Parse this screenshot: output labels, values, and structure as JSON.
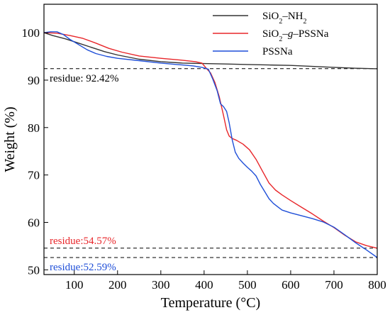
{
  "chart_data": {
    "type": "line",
    "xlabel": "Temperature (°C)",
    "ylabel": "Weight (%)",
    "xlim": [
      30,
      800
    ],
    "ylim": [
      49,
      106
    ],
    "xticks": [
      100,
      200,
      300,
      400,
      500,
      600,
      700,
      800
    ],
    "yticks": [
      50,
      60,
      70,
      80,
      90,
      100
    ],
    "grid": false,
    "legend_position": "top-right",
    "legend_entries": [
      {
        "series": 0,
        "parts": [
          {
            "t": "SiO",
            "s": "normal"
          },
          {
            "t": "2",
            "s": "sub"
          },
          {
            "t": "–NH",
            "s": "normal"
          },
          {
            "t": "2",
            "s": "sub"
          }
        ]
      },
      {
        "series": 1,
        "parts": [
          {
            "t": "SiO",
            "s": "normal"
          },
          {
            "t": "2",
            "s": "sub"
          },
          {
            "t": "–",
            "s": "normal"
          },
          {
            "t": "g",
            "s": "italic"
          },
          {
            "t": "–PSSNa",
            "s": "normal"
          }
        ]
      },
      {
        "series": 2,
        "parts": [
          {
            "t": "PSSNa",
            "s": "normal"
          }
        ]
      }
    ],
    "series": [
      {
        "name": "SiO2–NH2",
        "color": "#333333",
        "x": [
          30,
          50,
          80,
          110,
          140,
          170,
          200,
          250,
          300,
          350,
          400,
          450,
          500,
          550,
          600,
          650,
          700,
          750,
          800
        ],
        "y": [
          100.0,
          99.4,
          98.7,
          97.8,
          96.9,
          96.0,
          95.3,
          94.4,
          93.9,
          93.6,
          93.5,
          93.4,
          93.3,
          93.2,
          93.1,
          92.9,
          92.7,
          92.5,
          92.4
        ]
      },
      {
        "name": "SiO2–g–PSSNa",
        "color": "#e8262a",
        "x": [
          30,
          60,
          90,
          120,
          150,
          180,
          210,
          250,
          300,
          350,
          380,
          395,
          405,
          415,
          425,
          435,
          445,
          452,
          458,
          465,
          475,
          490,
          505,
          520,
          535,
          550,
          565,
          580,
          600,
          625,
          650,
          675,
          700,
          725,
          750,
          775,
          800
        ],
        "y": [
          100.0,
          99.9,
          99.4,
          98.8,
          97.8,
          96.7,
          95.9,
          95.1,
          94.6,
          94.2,
          93.9,
          93.6,
          92.5,
          91.5,
          89.5,
          86.5,
          82.5,
          79.5,
          78.2,
          77.7,
          77.3,
          76.5,
          75.3,
          73.3,
          70.8,
          68.3,
          66.8,
          65.8,
          64.6,
          63.2,
          61.8,
          60.3,
          58.9,
          57.3,
          55.9,
          55.1,
          54.57
        ]
      },
      {
        "name": "PSSNa",
        "color": "#1f4fd8",
        "x": [
          30,
          45,
          60,
          75,
          90,
          110,
          130,
          150,
          175,
          200,
          250,
          300,
          350,
          375,
          395,
          410,
          420,
          430,
          438,
          445,
          452,
          458,
          465,
          472,
          480,
          490,
          500,
          510,
          520,
          530,
          540,
          550,
          560,
          570,
          580,
          600,
          625,
          650,
          675,
          700,
          725,
          750,
          775,
          800
        ],
        "y": [
          100.0,
          100.2,
          100.2,
          99.6,
          98.6,
          97.5,
          96.4,
          95.6,
          95.0,
          94.6,
          94.1,
          93.6,
          93.2,
          93.0,
          92.7,
          92.3,
          90.2,
          87.8,
          85.0,
          84.4,
          83.4,
          81.0,
          77.4,
          74.8,
          73.5,
          72.5,
          71.6,
          70.8,
          69.8,
          68.0,
          66.5,
          65.0,
          64.0,
          63.3,
          62.6,
          62.0,
          61.4,
          60.8,
          60.1,
          59.0,
          57.4,
          55.7,
          54.2,
          52.59
        ]
      }
    ],
    "reference_lines": [
      {
        "y": 92.42,
        "label": "residue: 92.42%",
        "color": "#000000",
        "label_color": "#000000"
      },
      {
        "y": 54.57,
        "label": "residue:54.57%",
        "color": "#000000",
        "label_color": "#e8262a"
      },
      {
        "y": 52.59,
        "label": "residue:52.59%",
        "color": "#000000",
        "label_color": "#1f4fd8"
      }
    ]
  }
}
